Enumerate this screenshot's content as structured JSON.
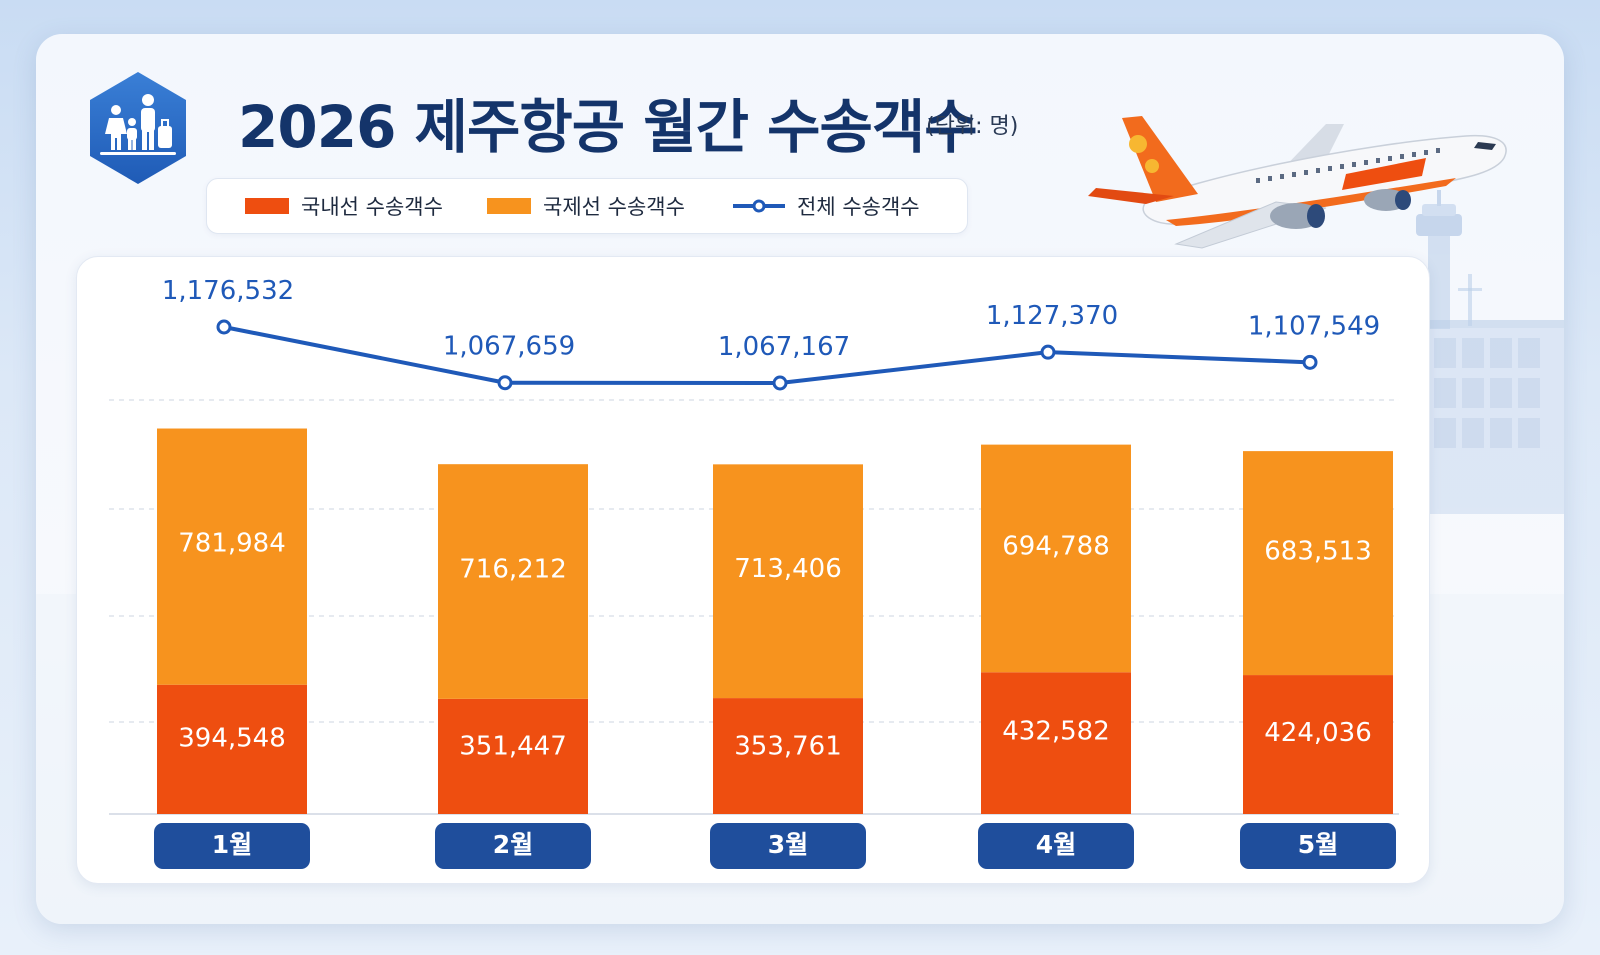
{
  "header": {
    "title": "2026 제주항공 월간 수송객수",
    "unit": "(단위: 명)"
  },
  "icons": {
    "badge": "family-luggage-icon",
    "airplane": "airplane-illustration",
    "tower": "control-tower-icon"
  },
  "colors": {
    "domestic": "#ee4e10",
    "international": "#f7931e",
    "total": "#1f59b8",
    "month_label_bg": "#1f4e9c",
    "title": "#14346a"
  },
  "legend": [
    {
      "label": "국내선 수송객수",
      "type": "bar",
      "color": "#ee4e10"
    },
    {
      "label": "국제선 수송객수",
      "type": "bar",
      "color": "#f7931e"
    },
    {
      "label": "전체 수송객수",
      "type": "line",
      "color": "#1f59b8"
    }
  ],
  "chart_data": {
    "type": "bar",
    "stacked": true,
    "categories": [
      "1월",
      "2월",
      "3월",
      "4월",
      "5월"
    ],
    "series": [
      {
        "name": "국내선 수송객수",
        "type": "bar",
        "values": [
          394548,
          351447,
          353761,
          432582,
          424036
        ]
      },
      {
        "name": "국제선 수송객수",
        "type": "bar",
        "values": [
          781984,
          716212,
          713406,
          694788,
          683513
        ]
      },
      {
        "name": "전체 수송객수",
        "type": "line",
        "values": [
          1176532,
          1067659,
          1067167,
          1127370,
          1107549
        ]
      }
    ],
    "ylim": [
      0,
      1700000
    ],
    "grid": true,
    "legend_position": "top"
  }
}
